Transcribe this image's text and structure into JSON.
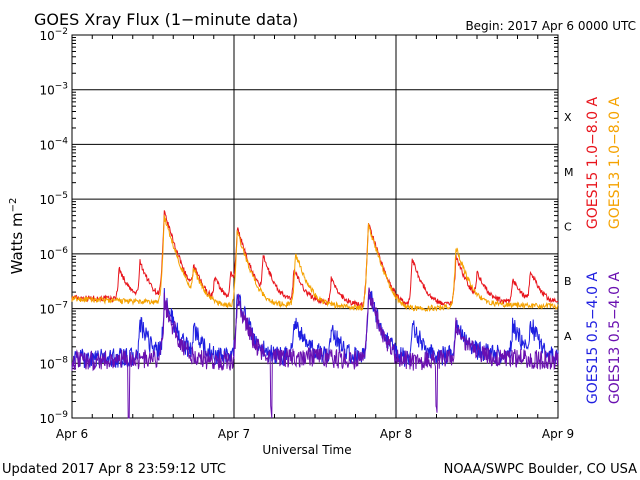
{
  "chart_data": {
    "type": "line",
    "title": "GOES Xray Flux (1−minute data)",
    "begin_label": "Begin:  2017 Apr 6 0000 UTC",
    "xlabel": "Universal Time",
    "ylabel": "Watts m",
    "ylabel_sup": "−2",
    "x_ticks": [
      "Apr 6",
      "Apr 7",
      "Apr 8",
      "Apr 9"
    ],
    "x_range_days": [
      0,
      3
    ],
    "y_scale": "log",
    "ylim": [
      1e-09,
      0.01
    ],
    "y_ticks": [
      {
        "base": "10",
        "exp": "−2"
      },
      {
        "base": "10",
        "exp": "−3"
      },
      {
        "base": "10",
        "exp": "−4"
      },
      {
        "base": "10",
        "exp": "−5"
      },
      {
        "base": "10",
        "exp": "−6"
      },
      {
        "base": "10",
        "exp": "−7"
      },
      {
        "base": "10",
        "exp": "−8"
      },
      {
        "base": "10",
        "exp": "−9"
      }
    ],
    "flare_classes": [
      {
        "label": "X",
        "level": 0.0001
      },
      {
        "label": "M",
        "level": 1e-05
      },
      {
        "label": "C",
        "level": 1e-06
      },
      {
        "label": "B",
        "level": 1e-07
      },
      {
        "label": "A",
        "level": 1e-08
      }
    ],
    "grid": true,
    "series": [
      {
        "name": "GOES15 1.0−8.0 A",
        "color": "#e8141c",
        "band": "long",
        "baseline": [
          [
            0,
            1.6e-07
          ],
          [
            0.5,
            1.4e-07
          ],
          [
            1,
            1.2e-07
          ],
          [
            1.5,
            1.3e-07
          ],
          [
            2,
            1e-07
          ],
          [
            2.5,
            1.3e-07
          ],
          [
            3,
            1.2e-07
          ]
        ],
        "peaks": [
          [
            0.29,
            4e-07
          ],
          [
            0.42,
            5.5e-07
          ],
          [
            0.57,
            5.5e-06
          ],
          [
            0.75,
            4e-07
          ],
          [
            0.88,
            2.3e-07
          ],
          [
            0.98,
            3e-07
          ],
          [
            1.02,
            2.7e-06
          ],
          [
            1.18,
            7e-07
          ],
          [
            1.37,
            4e-07
          ],
          [
            1.6,
            2.2e-07
          ],
          [
            1.83,
            3.5e-06
          ],
          [
            2.1,
            7e-07
          ],
          [
            2.37,
            8e-07
          ],
          [
            2.5,
            3e-07
          ],
          [
            2.72,
            2.2e-07
          ],
          [
            2.83,
            3.6e-07
          ]
        ]
      },
      {
        "name": "GOES13 1.0−8.0 A",
        "color": "#f5a200",
        "band": "long",
        "baseline": [
          [
            0,
            1.5e-07
          ],
          [
            0.5,
            1.3e-07
          ],
          [
            1,
            1.1e-07
          ],
          [
            1.5,
            1.2e-07
          ],
          [
            2,
            9e-08
          ],
          [
            2.5,
            1.2e-07
          ],
          [
            3,
            1.1e-07
          ]
        ],
        "peaks": [
          [
            0.57,
            4.5e-06
          ],
          [
            0.75,
            3.5e-07
          ],
          [
            1.02,
            2.4e-06
          ],
          [
            1.38,
            9e-07
          ],
          [
            1.83,
            3.2e-06
          ],
          [
            2.37,
            1.2e-06
          ]
        ]
      },
      {
        "name": "GOES15 0.5−4.0 A",
        "color": "#1e1ee0",
        "band": "short",
        "baseline": [
          [
            0,
            1.2e-08
          ],
          [
            0.5,
            1.3e-08
          ],
          [
            1,
            1.2e-08
          ],
          [
            1.5,
            1.4e-08
          ],
          [
            2,
            1.1e-08
          ],
          [
            2.5,
            1.5e-08
          ],
          [
            3,
            1.2e-08
          ]
        ],
        "peaks": [
          [
            0.42,
            4e-08
          ],
          [
            0.57,
            1.5e-07
          ],
          [
            0.75,
            3e-08
          ],
          [
            1.02,
            1.7e-07
          ],
          [
            1.37,
            5e-08
          ],
          [
            1.6,
            3e-08
          ],
          [
            1.83,
            2e-07
          ],
          [
            2.1,
            4e-08
          ],
          [
            2.37,
            5e-08
          ],
          [
            2.72,
            4e-08
          ],
          [
            2.83,
            4e-08
          ]
        ]
      },
      {
        "name": "GOES13 0.5−4.0 A",
        "color": "#6a10b0",
        "band": "short",
        "baseline": [
          [
            0,
            1.1e-08
          ],
          [
            0.5,
            1.2e-08
          ],
          [
            1,
            1.1e-08
          ],
          [
            1.5,
            1.3e-08
          ],
          [
            2,
            1e-08
          ],
          [
            2.5,
            1.4e-08
          ],
          [
            3,
            1.1e-08
          ]
        ],
        "peaks": [
          [
            0.57,
            1.2e-07
          ],
          [
            1.02,
            1.4e-07
          ],
          [
            1.83,
            1.7e-07
          ],
          [
            2.37,
            4e-08
          ]
        ],
        "dips": [
          [
            0.35,
            1e-09
          ],
          [
            1.23,
            1.2e-09
          ],
          [
            2.25,
            1.1e-09
          ]
        ]
      }
    ],
    "legend_placement": "right"
  },
  "footer": {
    "updated": "Updated 2017 Apr  8 23:59:12 UTC",
    "source": "NOAA/SWPC Boulder, CO USA"
  }
}
